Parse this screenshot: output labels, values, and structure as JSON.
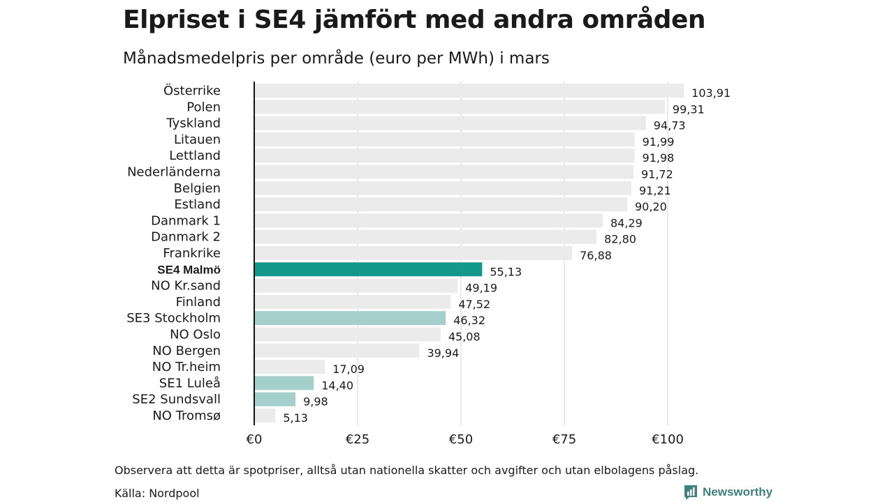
{
  "title": "Elpriset i SE4 jämfört med andra områden",
  "subtitle": "Månadsmedelpris per område (euro per MWh) i mars",
  "footnote": "Observera att detta är spotpriser, alltså utan nationella skatter och avgifter och utan elbolagens påslag.",
  "source": "Källa: Nordpool",
  "brand": {
    "name": "Newsworthy",
    "icon": "newsworthy-logo-icon"
  },
  "colors": {
    "default_bar": "#ebebeb",
    "highlight_bar": "#13978a",
    "secondary_bar": "#a5cfca",
    "grid": "#d4d4d4",
    "axis": "#111111"
  },
  "chart_data": {
    "type": "bar",
    "orientation": "horizontal",
    "categories": [
      "Österrike",
      "Polen",
      "Tyskland",
      "Litauen",
      "Lettland",
      "Nederländerna",
      "Belgien",
      "Estland",
      "Danmark 1",
      "Danmark 2",
      "Frankrike",
      "SE4 Malmö",
      "NO Kr.sand",
      "Finland",
      "SE3 Stockholm",
      "NO Oslo",
      "NO Bergen",
      "NO Tr.heim",
      "SE1 Luleå",
      "SE2 Sundsvall",
      "NO Tromsø"
    ],
    "values": [
      103.91,
      99.31,
      94.73,
      91.99,
      91.98,
      91.72,
      91.21,
      90.2,
      84.29,
      82.8,
      76.88,
      55.13,
      49.19,
      47.52,
      46.32,
      45.08,
      39.94,
      17.09,
      14.4,
      9.98,
      5.13
    ],
    "value_labels": [
      "103,91",
      "99,31",
      "94,73",
      "91,99",
      "91,98",
      "91,72",
      "91,21",
      "90,20",
      "84,29",
      "82,80",
      "76,88",
      "55,13",
      "49,19",
      "47,52",
      "46,32",
      "45,08",
      "39,94",
      "17,09",
      "14,40",
      "9,98",
      "5,13"
    ],
    "highlight": [
      "default",
      "default",
      "default",
      "default",
      "default",
      "default",
      "default",
      "default",
      "default",
      "default",
      "default",
      "highlight",
      "default",
      "default",
      "secondary",
      "default",
      "default",
      "default",
      "secondary",
      "secondary",
      "default"
    ],
    "xlim": [
      0,
      110
    ],
    "xticks": [
      0,
      25,
      50,
      75,
      100
    ],
    "xtick_labels": [
      "€0",
      "€25",
      "€50",
      "€75",
      "€100"
    ],
    "grid": true,
    "xlabel": "",
    "ylabel": ""
  }
}
